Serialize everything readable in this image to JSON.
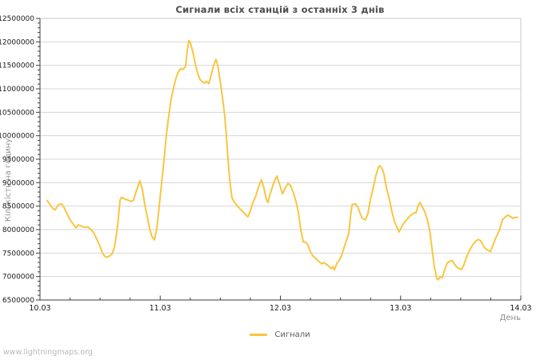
{
  "watermark": "www.lightningmaps.org",
  "colors": {
    "background": "#ffffff",
    "line": "#f8c63f",
    "grid": "#d6d6d6",
    "frame": "#c8c8c8",
    "axis": "#3d3d3d",
    "tick_text": "#1a1a1a",
    "axis_label_text": "#8c8c8c",
    "title_text": "#4d4d4d",
    "legend_text": "#5a5a5a",
    "watermark_text": "#b8b8b8"
  },
  "chart_data": {
    "type": "line",
    "title": "Сигнали всіх станцій з останніх 3 днів",
    "xlabel": "День",
    "ylabel": "Кількість на годину",
    "x_tick_labels": [
      "10.03",
      "11.03",
      "12.03",
      "13.03",
      "14.03"
    ],
    "xlim_days": [
      0,
      4
    ],
    "x_minor_step_days": 0.25,
    "ylim": [
      6500000,
      12500000
    ],
    "y_tick_step": 500000,
    "y_minor_step": 100000,
    "grid": "horizontal-only",
    "legend_position": "bottom-center",
    "series": [
      {
        "name": "Сигнали",
        "color": "#f8c63f",
        "x_unit": "days-since-10.03-00:00",
        "points": [
          [
            0.06,
            8620000
          ],
          [
            0.087,
            8520000
          ],
          [
            0.106,
            8450000
          ],
          [
            0.126,
            8420000
          ],
          [
            0.153,
            8530000
          ],
          [
            0.18,
            8550000
          ],
          [
            0.2,
            8470000
          ],
          [
            0.226,
            8330000
          ],
          [
            0.246,
            8230000
          ],
          [
            0.266,
            8150000
          ],
          [
            0.286,
            8080000
          ],
          [
            0.3,
            8040000
          ],
          [
            0.319,
            8100000
          ],
          [
            0.346,
            8070000
          ],
          [
            0.373,
            8050000
          ],
          [
            0.399,
            8060000
          ],
          [
            0.419,
            8010000
          ],
          [
            0.446,
            7940000
          ],
          [
            0.473,
            7790000
          ],
          [
            0.499,
            7650000
          ],
          [
            0.519,
            7500000
          ],
          [
            0.539,
            7430000
          ],
          [
            0.559,
            7410000
          ],
          [
            0.579,
            7440000
          ],
          [
            0.599,
            7480000
          ],
          [
            0.619,
            7620000
          ],
          [
            0.639,
            7950000
          ],
          [
            0.652,
            8250000
          ],
          [
            0.666,
            8630000
          ],
          [
            0.679,
            8690000
          ],
          [
            0.699,
            8660000
          ],
          [
            0.719,
            8640000
          ],
          [
            0.739,
            8620000
          ],
          [
            0.759,
            8600000
          ],
          [
            0.779,
            8630000
          ],
          [
            0.799,
            8800000
          ],
          [
            0.819,
            8960000
          ],
          [
            0.832,
            9040000
          ],
          [
            0.852,
            8850000
          ],
          [
            0.872,
            8530000
          ],
          [
            0.892,
            8280000
          ],
          [
            0.912,
            8020000
          ],
          [
            0.932,
            7850000
          ],
          [
            0.952,
            7780000
          ],
          [
            0.972,
            8020000
          ],
          [
            0.992,
            8500000
          ],
          [
            1.012,
            9000000
          ],
          [
            1.032,
            9500000
          ],
          [
            1.051,
            10000000
          ],
          [
            1.071,
            10420000
          ],
          [
            1.091,
            10780000
          ],
          [
            1.111,
            11020000
          ],
          [
            1.131,
            11220000
          ],
          [
            1.151,
            11360000
          ],
          [
            1.171,
            11430000
          ],
          [
            1.191,
            11410000
          ],
          [
            1.211,
            11480000
          ],
          [
            1.224,
            11800000
          ],
          [
            1.238,
            12030000
          ],
          [
            1.251,
            11980000
          ],
          [
            1.271,
            11790000
          ],
          [
            1.291,
            11540000
          ],
          [
            1.311,
            11330000
          ],
          [
            1.331,
            11200000
          ],
          [
            1.351,
            11150000
          ],
          [
            1.371,
            11120000
          ],
          [
            1.384,
            11160000
          ],
          [
            1.404,
            11110000
          ],
          [
            1.424,
            11300000
          ],
          [
            1.444,
            11500000
          ],
          [
            1.464,
            11630000
          ],
          [
            1.478,
            11500000
          ],
          [
            1.497,
            11210000
          ],
          [
            1.511,
            10950000
          ],
          [
            1.524,
            10700000
          ],
          [
            1.537,
            10420000
          ],
          [
            1.551,
            10000000
          ],
          [
            1.564,
            9500000
          ],
          [
            1.577,
            9100000
          ],
          [
            1.597,
            8680000
          ],
          [
            1.617,
            8580000
          ],
          [
            1.637,
            8520000
          ],
          [
            1.664,
            8440000
          ],
          [
            1.697,
            8360000
          ],
          [
            1.717,
            8300000
          ],
          [
            1.73,
            8270000
          ],
          [
            1.75,
            8400000
          ],
          [
            1.77,
            8560000
          ],
          [
            1.797,
            8730000
          ],
          [
            1.823,
            8950000
          ],
          [
            1.843,
            9060000
          ],
          [
            1.863,
            8890000
          ],
          [
            1.883,
            8640000
          ],
          [
            1.897,
            8580000
          ],
          [
            1.917,
            8780000
          ],
          [
            1.943,
            8980000
          ],
          [
            1.97,
            9140000
          ],
          [
            1.997,
            8940000
          ],
          [
            2.017,
            8760000
          ],
          [
            2.043,
            8900000
          ],
          [
            2.063,
            8980000
          ],
          [
            2.083,
            8950000
          ],
          [
            2.11,
            8770000
          ],
          [
            2.13,
            8600000
          ],
          [
            2.15,
            8360000
          ],
          [
            2.17,
            8000000
          ],
          [
            2.19,
            7740000
          ],
          [
            2.21,
            7730000
          ],
          [
            2.23,
            7670000
          ],
          [
            2.25,
            7520000
          ],
          [
            2.27,
            7440000
          ],
          [
            2.296,
            7380000
          ],
          [
            2.316,
            7330000
          ],
          [
            2.343,
            7270000
          ],
          [
            2.363,
            7300000
          ],
          [
            2.383,
            7260000
          ],
          [
            2.403,
            7220000
          ],
          [
            2.422,
            7170000
          ],
          [
            2.436,
            7210000
          ],
          [
            2.449,
            7140000
          ],
          [
            2.469,
            7280000
          ],
          [
            2.489,
            7340000
          ],
          [
            2.509,
            7450000
          ],
          [
            2.529,
            7610000
          ],
          [
            2.549,
            7770000
          ],
          [
            2.569,
            7920000
          ],
          [
            2.582,
            8250000
          ],
          [
            2.596,
            8530000
          ],
          [
            2.622,
            8550000
          ],
          [
            2.642,
            8490000
          ],
          [
            2.662,
            8350000
          ],
          [
            2.682,
            8240000
          ],
          [
            2.708,
            8210000
          ],
          [
            2.729,
            8350000
          ],
          [
            2.748,
            8630000
          ],
          [
            2.775,
            8920000
          ],
          [
            2.795,
            9150000
          ],
          [
            2.815,
            9330000
          ],
          [
            2.828,
            9360000
          ],
          [
            2.848,
            9290000
          ],
          [
            2.862,
            9180000
          ],
          [
            2.882,
            8890000
          ],
          [
            2.908,
            8630000
          ],
          [
            2.928,
            8380000
          ],
          [
            2.948,
            8180000
          ],
          [
            2.968,
            8060000
          ],
          [
            2.988,
            7950000
          ],
          [
            3.015,
            8090000
          ],
          [
            3.041,
            8180000
          ],
          [
            3.061,
            8240000
          ],
          [
            3.081,
            8300000
          ],
          [
            3.108,
            8350000
          ],
          [
            3.128,
            8360000
          ],
          [
            3.148,
            8530000
          ],
          [
            3.161,
            8580000
          ],
          [
            3.181,
            8480000
          ],
          [
            3.201,
            8380000
          ],
          [
            3.221,
            8220000
          ],
          [
            3.241,
            8000000
          ],
          [
            3.261,
            7600000
          ],
          [
            3.281,
            7200000
          ],
          [
            3.301,
            6960000
          ],
          [
            3.314,
            6930000
          ],
          [
            3.328,
            7000000
          ],
          [
            3.347,
            6970000
          ],
          [
            3.367,
            7150000
          ],
          [
            3.387,
            7280000
          ],
          [
            3.407,
            7320000
          ],
          [
            3.427,
            7340000
          ],
          [
            3.447,
            7270000
          ],
          [
            3.467,
            7200000
          ],
          [
            3.487,
            7170000
          ],
          [
            3.507,
            7150000
          ],
          [
            3.527,
            7250000
          ],
          [
            3.547,
            7400000
          ],
          [
            3.567,
            7520000
          ],
          [
            3.587,
            7620000
          ],
          [
            3.607,
            7700000
          ],
          [
            3.627,
            7760000
          ],
          [
            3.647,
            7790000
          ],
          [
            3.667,
            7760000
          ],
          [
            3.687,
            7660000
          ],
          [
            3.707,
            7590000
          ],
          [
            3.727,
            7560000
          ],
          [
            3.747,
            7530000
          ],
          [
            3.767,
            7650000
          ],
          [
            3.787,
            7800000
          ],
          [
            3.807,
            7900000
          ],
          [
            3.827,
            8020000
          ],
          [
            3.847,
            8210000
          ],
          [
            3.867,
            8260000
          ],
          [
            3.893,
            8310000
          ],
          [
            3.913,
            8280000
          ],
          [
            3.933,
            8240000
          ],
          [
            3.953,
            8260000
          ],
          [
            3.973,
            8260000
          ]
        ]
      }
    ]
  }
}
